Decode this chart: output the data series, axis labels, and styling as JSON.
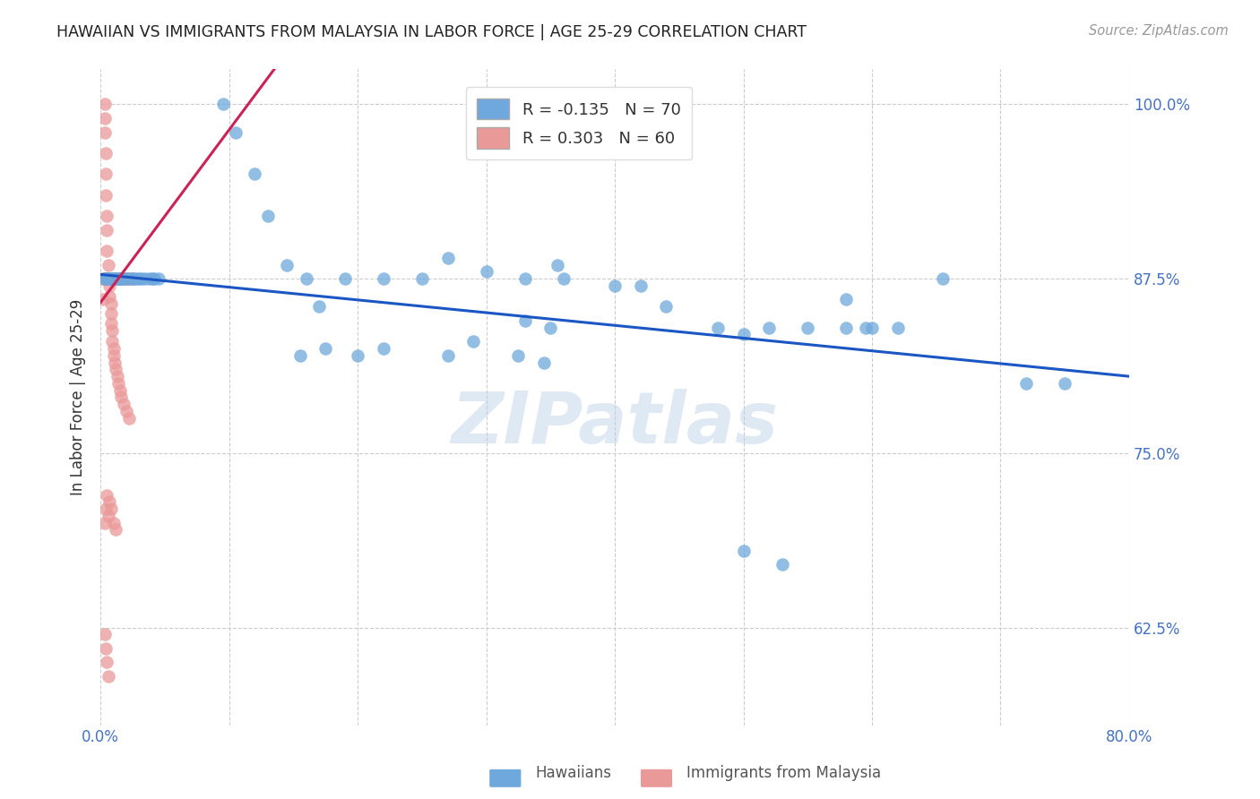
{
  "title": "HAWAIIAN VS IMMIGRANTS FROM MALAYSIA IN LABOR FORCE | AGE 25-29 CORRELATION CHART",
  "source": "Source: ZipAtlas.com",
  "ylabel": "In Labor Force | Age 25-29",
  "x_min": 0.0,
  "x_max": 0.8,
  "y_min": 0.555,
  "y_max": 1.025,
  "x_tick_pos": [
    0.0,
    0.1,
    0.2,
    0.3,
    0.4,
    0.5,
    0.6,
    0.7,
    0.8
  ],
  "x_tick_labels": [
    "0.0%",
    "",
    "",
    "",
    "",
    "",
    "",
    "",
    "80.0%"
  ],
  "y_tick_pos": [
    0.625,
    0.75,
    0.875,
    1.0
  ],
  "y_tick_labels": [
    "62.5%",
    "75.0%",
    "87.5%",
    "100.0%"
  ],
  "blue_color": "#6fa8dc",
  "pink_color": "#ea9999",
  "blue_line_color": "#1a56c4",
  "pink_line_color": "#cc2255",
  "legend_blue_R": "-0.135",
  "legend_blue_N": "70",
  "legend_pink_R": "0.303",
  "legend_pink_N": "60",
  "watermark": "ZIPatlas",
  "blue_line_x": [
    0.0,
    0.8
  ],
  "blue_line_y": [
    0.878,
    0.805
  ],
  "pink_line_x": [
    0.0,
    0.135
  ],
  "pink_line_y": [
    0.858,
    1.025
  ],
  "hawaiians_x": [
    0.003,
    0.004,
    0.005,
    0.006,
    0.006,
    0.007,
    0.008,
    0.009,
    0.01,
    0.01,
    0.012,
    0.013,
    0.015,
    0.015,
    0.016,
    0.018,
    0.02,
    0.022,
    0.025,
    0.025,
    0.028,
    0.03,
    0.032,
    0.035,
    0.038,
    0.04,
    0.042,
    0.045,
    0.12,
    0.13,
    0.145,
    0.16,
    0.17,
    0.19,
    0.22,
    0.25,
    0.27,
    0.3,
    0.33,
    0.355,
    0.36,
    0.4,
    0.42,
    0.44,
    0.48,
    0.5,
    0.52,
    0.55,
    0.58,
    0.6,
    0.62,
    0.655,
    0.72,
    0.75,
    0.325,
    0.345,
    0.5,
    0.53,
    0.58,
    0.595,
    0.27,
    0.29,
    0.2,
    0.22,
    0.155,
    0.175,
    0.095,
    0.105,
    0.33,
    0.35
  ],
  "hawaiians_y": [
    0.875,
    0.875,
    0.875,
    0.875,
    0.875,
    0.875,
    0.875,
    0.875,
    0.875,
    0.875,
    0.875,
    0.875,
    0.875,
    0.875,
    0.875,
    0.875,
    0.875,
    0.875,
    0.875,
    0.875,
    0.875,
    0.875,
    0.875,
    0.875,
    0.875,
    0.875,
    0.875,
    0.875,
    0.95,
    0.92,
    0.885,
    0.875,
    0.855,
    0.875,
    0.875,
    0.875,
    0.89,
    0.88,
    0.875,
    0.885,
    0.875,
    0.87,
    0.87,
    0.855,
    0.84,
    0.835,
    0.84,
    0.84,
    0.86,
    0.84,
    0.84,
    0.875,
    0.8,
    0.8,
    0.82,
    0.815,
    0.68,
    0.67,
    0.84,
    0.84,
    0.82,
    0.83,
    0.82,
    0.825,
    0.82,
    0.825,
    1.0,
    0.98,
    0.845,
    0.84
  ],
  "malaysia_x": [
    0.002,
    0.002,
    0.003,
    0.003,
    0.003,
    0.004,
    0.004,
    0.004,
    0.005,
    0.005,
    0.005,
    0.006,
    0.006,
    0.007,
    0.007,
    0.007,
    0.008,
    0.008,
    0.008,
    0.009,
    0.009,
    0.01,
    0.01,
    0.011,
    0.012,
    0.013,
    0.014,
    0.015,
    0.016,
    0.018,
    0.02,
    0.022,
    0.002,
    0.003,
    0.004,
    0.005,
    0.006,
    0.007,
    0.008,
    0.009,
    0.01,
    0.012,
    0.014,
    0.016,
    0.018,
    0.02,
    0.022,
    0.025,
    0.003,
    0.004,
    0.005,
    0.006,
    0.007,
    0.008,
    0.01,
    0.012,
    0.003,
    0.004,
    0.005,
    0.006
  ],
  "malaysia_y": [
    0.875,
    0.86,
    1.0,
    0.99,
    0.98,
    0.965,
    0.95,
    0.935,
    0.92,
    0.91,
    0.895,
    0.885,
    0.875,
    0.875,
    0.87,
    0.862,
    0.857,
    0.85,
    0.843,
    0.838,
    0.83,
    0.825,
    0.82,
    0.815,
    0.81,
    0.805,
    0.8,
    0.795,
    0.79,
    0.785,
    0.78,
    0.775,
    0.875,
    0.875,
    0.875,
    0.875,
    0.875,
    0.875,
    0.875,
    0.875,
    0.875,
    0.875,
    0.875,
    0.875,
    0.875,
    0.875,
    0.875,
    0.875,
    0.7,
    0.71,
    0.72,
    0.705,
    0.715,
    0.71,
    0.7,
    0.695,
    0.62,
    0.61,
    0.6,
    0.59
  ]
}
